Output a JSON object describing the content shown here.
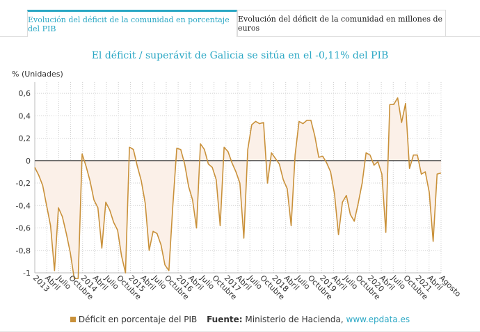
{
  "tabs": [
    {
      "label": "Evolución del déficit de la comunidad en porcentaje del PIB",
      "active": true
    },
    {
      "label": "Evolución del déficit de la comunidad en millones de euros",
      "active": false
    }
  ],
  "footer": {
    "legend_label": "Déficit en porcentaje del PIB",
    "source_label": "Fuente:",
    "source_text": "Ministerio de Hacienda,",
    "source_link": "www.epdata.es"
  },
  "colors": {
    "line": "#c9913a",
    "fill": "#fbf0e8",
    "accent": "#2aa7c4"
  },
  "chart_data": {
    "type": "line",
    "title": "El déficit / superávit de Galicia se sitúa en el -0,11% del PIB",
    "ylabel": "% (Unidades)",
    "ylim": [
      -1,
      0.7
    ],
    "yticks": [
      "-1",
      "-0,8",
      "-0,6",
      "-0,4",
      "-0,2",
      "0",
      "0,2",
      "0,4",
      "0,6"
    ],
    "ytick_values": [
      -1,
      -0.8,
      -0.6,
      -0.4,
      -0.2,
      0,
      0.2,
      0.4,
      0.6
    ],
    "x_labels": [
      "2013",
      "Abril",
      "Julio",
      "Octubre",
      "2014",
      "Abril",
      "Julio",
      "Octubre",
      "2015",
      "Abril",
      "Julio",
      "Octubre",
      "2016",
      "Abril",
      "Julio",
      "Octubre",
      "2017",
      "Abril",
      "Julio",
      "Octubre",
      "2018",
      "Abril",
      "Julio",
      "Octubre",
      "2019",
      "Abril",
      "Julio",
      "Octubre",
      "2020",
      "Abril",
      "Julio",
      "Octubre",
      "2021",
      "Abril",
      "Agosto"
    ],
    "x_start": "2013-01",
    "x_end": "2021-08",
    "grid": true,
    "series": [
      {
        "name": "Déficit en porcentaje del PIB",
        "values": [
          -0.06,
          -0.13,
          -0.22,
          -0.4,
          -0.58,
          -0.98,
          -0.42,
          -0.5,
          -0.65,
          -0.82,
          -1.07,
          -1.15,
          0.06,
          -0.05,
          -0.18,
          -0.35,
          -0.42,
          -0.78,
          -0.37,
          -0.44,
          -0.55,
          -0.62,
          -0.85,
          -1.0,
          0.12,
          0.1,
          -0.05,
          -0.18,
          -0.38,
          -0.8,
          -0.63,
          -0.65,
          -0.75,
          -0.93,
          -0.98,
          -0.4,
          0.11,
          0.1,
          -0.03,
          -0.23,
          -0.35,
          -0.6,
          0.15,
          0.1,
          -0.03,
          -0.06,
          -0.17,
          -0.58,
          0.12,
          0.08,
          -0.02,
          -0.1,
          -0.2,
          -0.69,
          0.1,
          0.32,
          0.35,
          0.33,
          0.34,
          -0.2,
          0.07,
          0.02,
          -0.03,
          -0.17,
          -0.25,
          -0.58,
          0.05,
          0.35,
          0.33,
          0.36,
          0.36,
          0.22,
          0.03,
          0.04,
          -0.02,
          -0.1,
          -0.3,
          -0.66,
          -0.37,
          -0.31,
          -0.48,
          -0.54,
          -0.38,
          -0.2,
          0.07,
          0.05,
          -0.04,
          -0.01,
          -0.12,
          -0.64,
          0.5,
          0.5,
          0.56,
          0.34,
          0.51,
          -0.07,
          0.05,
          0.05,
          -0.12,
          -0.1,
          -0.28,
          -0.72,
          -0.12,
          -0.11
        ]
      }
    ]
  }
}
